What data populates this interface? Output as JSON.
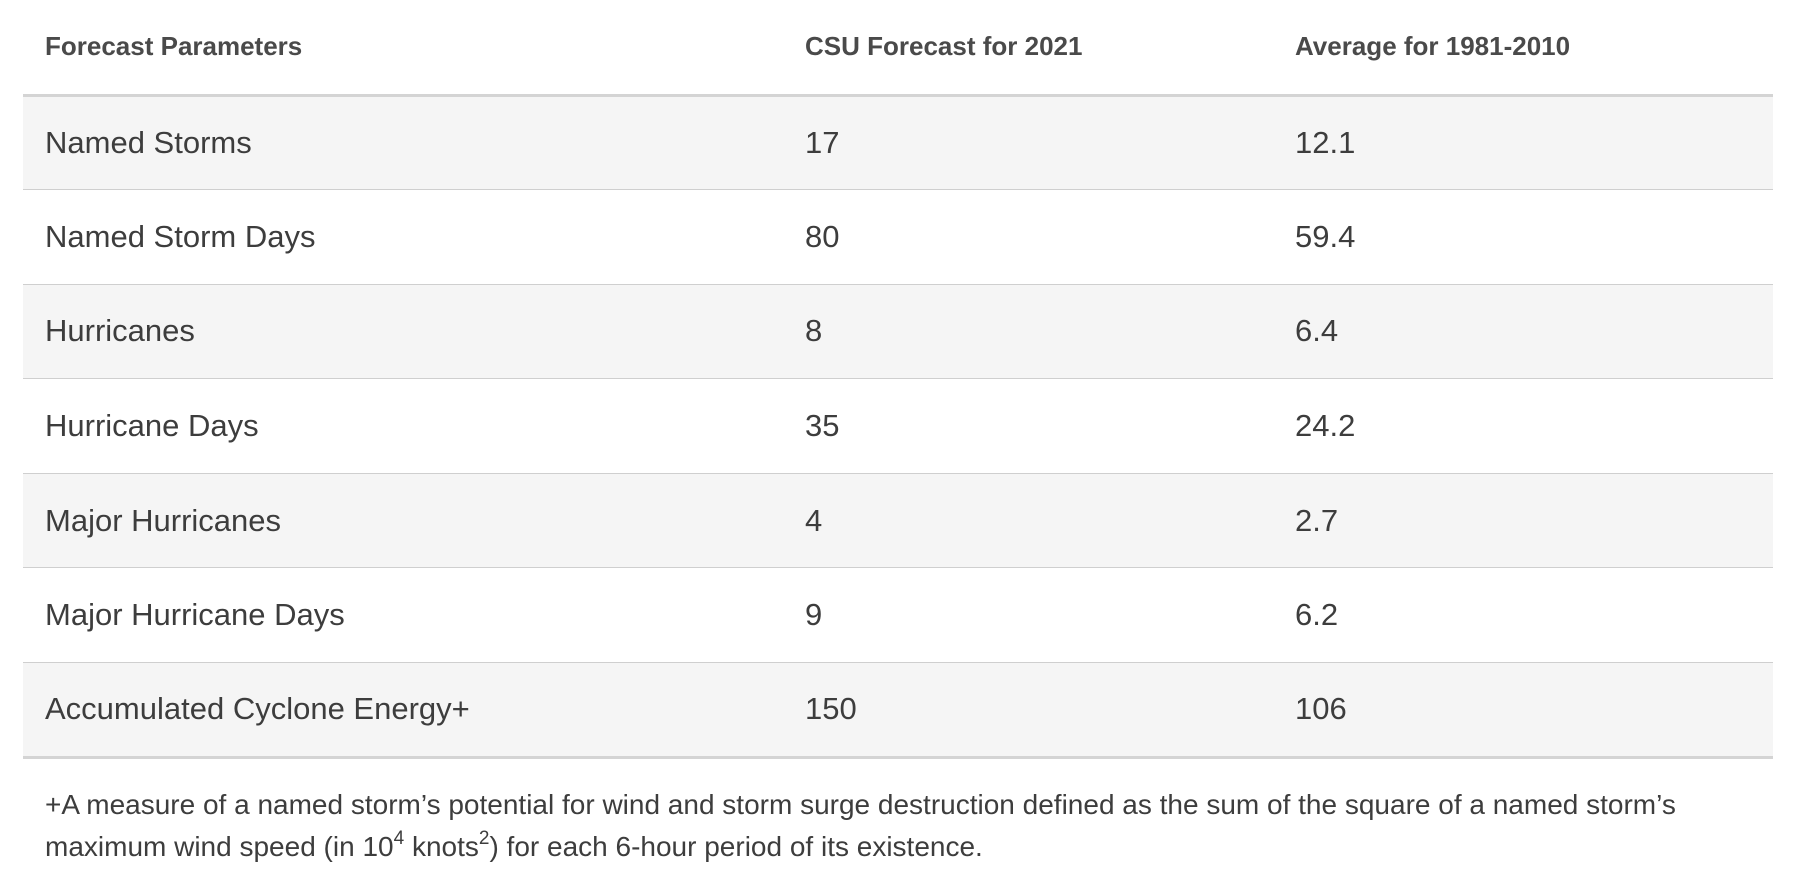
{
  "table": {
    "headers": [
      "Forecast Parameters",
      "CSU Forecast for 2021",
      "Average for 1981-2010"
    ],
    "rows": [
      [
        "Named Storms",
        "17",
        "12.1"
      ],
      [
        "Named Storm Days",
        "80",
        "59.4"
      ],
      [
        "Hurricanes",
        "8",
        "6.4"
      ],
      [
        "Hurricane Days",
        "35",
        "24.2"
      ],
      [
        "Major Hurricanes",
        "4",
        "2.7"
      ],
      [
        "Major Hurricane Days",
        "9",
        "6.2"
      ],
      [
        "Accumulated Cyclone Energy+",
        "150",
        "106"
      ]
    ]
  },
  "footnote": {
    "part1": "+A measure of a named storm’s potential for wind and storm surge destruction defined as the sum of the square of a named storm’s maximum wind speed (in 10",
    "sup1": "4",
    "part2": " knots",
    "sup2": "2",
    "part3": ") for each 6-hour period of its existence."
  }
}
